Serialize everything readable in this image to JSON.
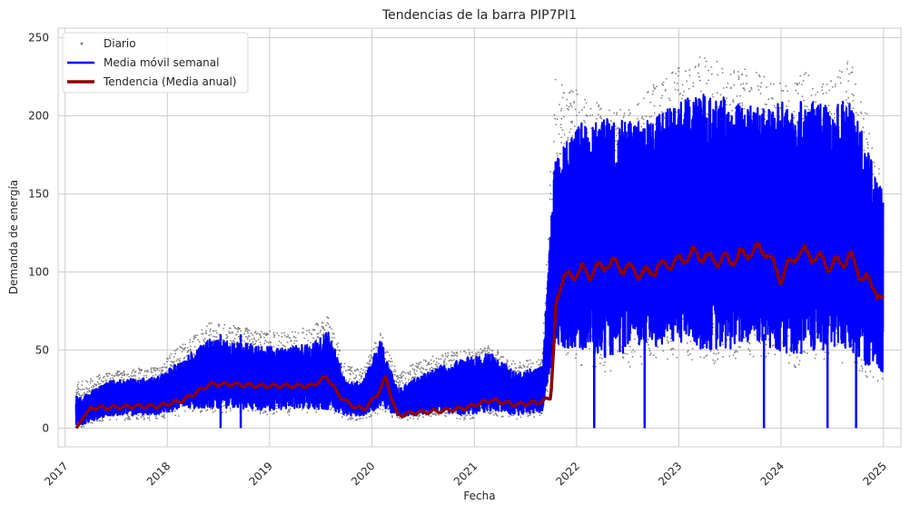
{
  "chart_data": {
    "type": "line",
    "title": "Tendencias de la barra PIP7PI1",
    "xlabel": "Fecha",
    "ylabel": "Demanda de energía",
    "xlim": [
      "2016-12-07",
      "2025-03-04"
    ],
    "ylim": [
      -12,
      256
    ],
    "x_ticks": [
      "2017",
      "2018",
      "2019",
      "2020",
      "2021",
      "2022",
      "2023",
      "2024",
      "2025"
    ],
    "y_ticks": [
      0,
      50,
      100,
      150,
      200,
      250
    ],
    "grid": true,
    "legend_position": "top-left",
    "series": [
      {
        "name": "Diario",
        "kind": "scatter",
        "color": "#808080",
        "x": [
          "2017-03-01",
          "2017-06-01",
          "2017-09-01",
          "2017-12-01",
          "2018-03-01",
          "2018-06-01",
          "2018-09-01",
          "2018-12-01",
          "2019-03-01",
          "2019-06-01",
          "2019-08-01",
          "2019-10-01",
          "2019-12-01",
          "2020-02-01",
          "2020-04-01",
          "2020-06-01",
          "2020-09-01",
          "2020-12-01",
          "2021-03-01",
          "2021-06-01",
          "2021-09-01",
          "2021-10-15",
          "2022-01-01",
          "2022-04-01",
          "2022-07-01",
          "2022-10-01",
          "2023-01-01",
          "2023-04-01",
          "2023-07-01",
          "2023-10-01",
          "2024-01-01",
          "2024-04-01",
          "2024-07-01",
          "2024-09-01",
          "2024-11-01",
          "2024-12-31"
        ],
        "y_max": [
          30,
          36,
          38,
          40,
          55,
          68,
          66,
          62,
          62,
          65,
          72,
          40,
          38,
          63,
          35,
          42,
          48,
          50,
          53,
          42,
          46,
          224,
          218,
          206,
          203,
          220,
          232,
          239,
          232,
          228,
          222,
          228,
          222,
          242,
          205,
          156
        ],
        "y_min": [
          0,
          5,
          5,
          5,
          8,
          10,
          10,
          8,
          8,
          10,
          10,
          5,
          5,
          10,
          5,
          5,
          8,
          5,
          8,
          5,
          8,
          45,
          40,
          35,
          38,
          42,
          45,
          40,
          42,
          45,
          40,
          38,
          42,
          40,
          30,
          30
        ]
      },
      {
        "name": "Media móvil semanal",
        "kind": "line",
        "color": "#0000ff",
        "x": [
          "2017-03-01",
          "2017-06-01",
          "2017-09-01",
          "2017-12-01",
          "2018-03-01",
          "2018-06-01",
          "2018-09-01",
          "2018-12-01",
          "2019-03-01",
          "2019-06-01",
          "2019-08-01",
          "2019-10-01",
          "2019-12-01",
          "2020-02-01",
          "2020-04-01",
          "2020-06-01",
          "2020-09-01",
          "2020-12-01",
          "2021-03-01",
          "2021-06-01",
          "2021-09-01",
          "2021-10-15",
          "2022-01-01",
          "2022-04-01",
          "2022-07-01",
          "2022-10-01",
          "2023-01-01",
          "2023-04-01",
          "2023-07-01",
          "2023-10-01",
          "2024-01-01",
          "2024-04-01",
          "2024-07-01",
          "2024-09-01",
          "2024-11-01",
          "2024-12-31"
        ],
        "y_max": [
          20,
          30,
          32,
          33,
          45,
          57,
          55,
          53,
          52,
          54,
          62,
          30,
          30,
          57,
          25,
          32,
          40,
          45,
          48,
          35,
          40,
          170,
          195,
          200,
          196,
          198,
          210,
          215,
          212,
          207,
          210,
          210,
          206,
          216,
          180,
          150
        ],
        "y_min": [
          2,
          8,
          8,
          9,
          12,
          13,
          13,
          11,
          12,
          12,
          12,
          8,
          8,
          13,
          8,
          8,
          11,
          8,
          11,
          8,
          10,
          52,
          50,
          45,
          48,
          52,
          55,
          50,
          50,
          55,
          48,
          46,
          50,
          48,
          40,
          36
        ]
      },
      {
        "name": "Tendencia (Media anual)",
        "kind": "line",
        "color": "#8b0000",
        "x": [
          "2017-02-10",
          "2017-03-01",
          "2017-04-01",
          "2017-06-01",
          "2017-09-01",
          "2017-12-01",
          "2018-03-01",
          "2018-06-01",
          "2018-09-01",
          "2018-12-01",
          "2019-03-01",
          "2019-06-01",
          "2019-07-25",
          "2019-09-01",
          "2019-10-15",
          "2019-12-01",
          "2020-01-15",
          "2020-02-20",
          "2020-04-01",
          "2020-06-01",
          "2020-09-01",
          "2020-12-01",
          "2021-03-01",
          "2021-06-01",
          "2021-09-01",
          "2021-10-01",
          "2021-10-20",
          "2021-11-01",
          "2021-12-01",
          "2022-01-01",
          "2022-03-01",
          "2022-05-01",
          "2022-07-01",
          "2022-09-01",
          "2022-11-01",
          "2023-01-01",
          "2023-03-01",
          "2023-05-01",
          "2023-07-01",
          "2023-09-01",
          "2023-11-01",
          "2024-01-01",
          "2024-03-01",
          "2024-05-01",
          "2024-07-01",
          "2024-09-01",
          "2024-10-15",
          "2024-12-01",
          "2024-12-31"
        ],
        "y": [
          0,
          5,
          13,
          13,
          14,
          14,
          18,
          28,
          28,
          27,
          27,
          27,
          33,
          22,
          15,
          12,
          20,
          32,
          8,
          10,
          11,
          13,
          18,
          15,
          17,
          20,
          80,
          92,
          97,
          100,
          100,
          106,
          102,
          98,
          104,
          107,
          112,
          108,
          107,
          112,
          115,
          96,
          113,
          110,
          104,
          110,
          97,
          90,
          80
        ]
      }
    ]
  }
}
